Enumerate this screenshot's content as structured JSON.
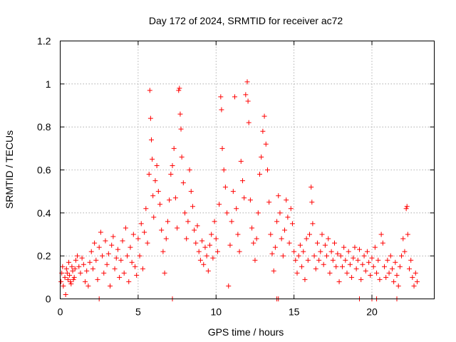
{
  "chart_data": {
    "type": "scatter",
    "title": "Day 172 of 2024, SRMTID for receiver ac72",
    "xlabel": "GPS time / hours",
    "ylabel": "SRMTID / TECUs",
    "xlim": [
      0,
      24
    ],
    "ylim": [
      0,
      1.2
    ],
    "xticks": [
      0,
      5,
      10,
      15,
      20
    ],
    "xtick_labels": [
      "0",
      "5",
      "10",
      "15",
      "20"
    ],
    "yticks": [
      0,
      0.2,
      0.4,
      0.6,
      0.8,
      1.0,
      1.2
    ],
    "ytick_labels": [
      "0",
      "0.2",
      "0.4",
      "0.6",
      "0.8",
      "1",
      "1.2"
    ],
    "grid": true,
    "marker": "plus",
    "color": "#ff0000",
    "series": [
      {
        "name": "SRMTID",
        "points": [
          [
            0.05,
            0.08
          ],
          [
            0.1,
            0.12
          ],
          [
            0.2,
            0.06
          ],
          [
            0.3,
            0.1
          ],
          [
            0.4,
            0.14
          ],
          [
            0.5,
            0.09
          ],
          [
            0.6,
            0.11
          ],
          [
            0.7,
            0.07
          ],
          [
            0.8,
            0.13
          ],
          [
            0.9,
            0.1
          ],
          [
            0.15,
            0.15
          ],
          [
            0.35,
            0.02
          ],
          [
            0.45,
            0.12
          ],
          [
            0.55,
            0.17
          ],
          [
            0.65,
            0.08
          ],
          [
            0.75,
            0.15
          ],
          [
            0.85,
            0.09
          ],
          [
            0.95,
            0.14
          ],
          [
            1.0,
            0.18
          ],
          [
            1.1,
            0.2
          ],
          [
            1.2,
            0.15
          ],
          [
            1.3,
            0.12
          ],
          [
            1.4,
            0.19
          ],
          [
            1.5,
            0.16
          ],
          [
            1.6,
            0.08
          ],
          [
            1.7,
            0.13
          ],
          [
            1.8,
            0.06
          ],
          [
            1.9,
            0.17
          ],
          [
            2.0,
            0.22
          ],
          [
            2.1,
            0.14
          ],
          [
            2.2,
            0.26
          ],
          [
            2.3,
            0.18
          ],
          [
            2.4,
            0.09
          ],
          [
            2.5,
            0.24
          ],
          [
            2.6,
            0.31
          ],
          [
            2.7,
            0.2
          ],
          [
            2.8,
            0.12
          ],
          [
            2.9,
            0.27
          ],
          [
            3.0,
            0.16
          ],
          [
            3.1,
            0.21
          ],
          [
            3.2,
            0.06
          ],
          [
            3.3,
            0.25
          ],
          [
            3.4,
            0.29
          ],
          [
            3.5,
            0.14
          ],
          [
            3.6,
            0.19
          ],
          [
            3.7,
            0.23
          ],
          [
            3.8,
            0.1
          ],
          [
            3.9,
            0.18
          ],
          [
            4.0,
            0.27
          ],
          [
            4.1,
            0.12
          ],
          [
            4.2,
            0.33
          ],
          [
            4.3,
            0.2
          ],
          [
            4.4,
            0.08
          ],
          [
            4.5,
            0.24
          ],
          [
            4.6,
            0.17
          ],
          [
            4.7,
            0.3
          ],
          [
            4.8,
            0.15
          ],
          [
            4.9,
            0.11
          ],
          [
            5.0,
            0.28
          ],
          [
            5.1,
            0.2
          ],
          [
            5.2,
            0.35
          ],
          [
            5.3,
            0.14
          ],
          [
            5.4,
            0.31
          ],
          [
            5.5,
            0.42
          ],
          [
            5.6,
            0.26
          ],
          [
            5.7,
            0.58
          ],
          [
            5.75,
            0.97
          ],
          [
            5.8,
            0.84
          ],
          [
            5.85,
            0.74
          ],
          [
            5.9,
            0.65
          ],
          [
            5.95,
            0.48
          ],
          [
            6.0,
            0.38
          ],
          [
            6.1,
            0.55
          ],
          [
            6.2,
            0.62
          ],
          [
            6.3,
            0.5
          ],
          [
            6.4,
            0.44
          ],
          [
            6.5,
            0.32
          ],
          [
            6.6,
            0.22
          ],
          [
            6.7,
            0.12
          ],
          [
            6.8,
            0.28
          ],
          [
            6.9,
            0.36
          ],
          [
            7.0,
            0.46
          ],
          [
            7.1,
            0.58
          ],
          [
            7.2,
            0.62
          ],
          [
            7.3,
            0.7
          ],
          [
            7.4,
            0.47
          ],
          [
            7.5,
            0.33
          ],
          [
            7.6,
            0.97
          ],
          [
            7.65,
            0.98
          ],
          [
            7.7,
            0.86
          ],
          [
            7.75,
            0.79
          ],
          [
            7.8,
            0.66
          ],
          [
            7.9,
            0.54
          ],
          [
            8.0,
            0.4
          ],
          [
            8.1,
            0.28
          ],
          [
            8.2,
            0.36
          ],
          [
            8.3,
            0.6
          ],
          [
            8.4,
            0.5
          ],
          [
            8.5,
            0.43
          ],
          [
            8.6,
            0.32
          ],
          [
            8.7,
            0.26
          ],
          [
            8.8,
            0.34
          ],
          [
            8.9,
            0.22
          ],
          [
            9.0,
            0.18
          ],
          [
            9.1,
            0.27
          ],
          [
            9.2,
            0.16
          ],
          [
            9.3,
            0.24
          ],
          [
            9.4,
            0.2
          ],
          [
            9.5,
            0.13
          ],
          [
            9.6,
            0.25
          ],
          [
            9.7,
            0.3
          ],
          [
            9.8,
            0.19
          ],
          [
            9.9,
            0.36
          ],
          [
            10.0,
            0.28
          ],
          [
            10.1,
            0.22
          ],
          [
            10.2,
            0.44
          ],
          [
            10.3,
            0.94
          ],
          [
            10.35,
            0.88
          ],
          [
            10.4,
            0.7
          ],
          [
            10.5,
            0.6
          ],
          [
            10.6,
            0.52
          ],
          [
            10.7,
            0.4
          ],
          [
            10.8,
            0.06
          ],
          [
            10.9,
            0.25
          ],
          [
            11.0,
            0.36
          ],
          [
            11.1,
            0.5
          ],
          [
            11.2,
            0.94
          ],
          [
            11.3,
            0.42
          ],
          [
            11.4,
            0.3
          ],
          [
            11.5,
            0.22
          ],
          [
            11.6,
            0.64
          ],
          [
            11.7,
            0.55
          ],
          [
            11.8,
            0.47
          ],
          [
            11.9,
            0.95
          ],
          [
            12.0,
            1.01
          ],
          [
            12.05,
            0.92
          ],
          [
            12.1,
            0.82
          ],
          [
            12.2,
            0.46
          ],
          [
            12.3,
            0.33
          ],
          [
            12.4,
            0.26
          ],
          [
            12.5,
            0.18
          ],
          [
            12.6,
            0.28
          ],
          [
            12.7,
            0.4
          ],
          [
            12.8,
            0.58
          ],
          [
            12.9,
            0.66
          ],
          [
            13.0,
            0.78
          ],
          [
            13.1,
            0.85
          ],
          [
            13.2,
            0.72
          ],
          [
            13.3,
            0.6
          ],
          [
            13.4,
            0.45
          ],
          [
            13.5,
            0.3
          ],
          [
            13.6,
            0.21
          ],
          [
            13.7,
            0.13
          ],
          [
            13.8,
            0.24
          ],
          [
            13.9,
            0.36
          ],
          [
            14.0,
            0.48
          ],
          [
            14.1,
            0.4
          ],
          [
            14.2,
            0.28
          ],
          [
            14.3,
            0.2
          ],
          [
            14.4,
            0.32
          ],
          [
            14.5,
            0.46
          ],
          [
            14.6,
            0.38
          ],
          [
            14.7,
            0.26
          ],
          [
            14.8,
            0.42
          ],
          [
            14.9,
            0.35
          ],
          [
            15.0,
            0.22
          ],
          [
            15.1,
            0.18
          ],
          [
            15.2,
            0.12
          ],
          [
            15.3,
            0.2
          ],
          [
            15.4,
            0.25
          ],
          [
            15.5,
            0.15
          ],
          [
            15.6,
            0.22
          ],
          [
            15.7,
            0.09
          ],
          [
            15.8,
            0.28
          ],
          [
            15.9,
            0.18
          ],
          [
            16.0,
            0.3
          ],
          [
            16.1,
            0.52
          ],
          [
            16.15,
            0.45
          ],
          [
            16.2,
            0.35
          ],
          [
            16.3,
            0.2
          ],
          [
            16.4,
            0.14
          ],
          [
            16.5,
            0.26
          ],
          [
            16.6,
            0.18
          ],
          [
            16.7,
            0.22
          ],
          [
            16.8,
            0.3
          ],
          [
            16.9,
            0.16
          ],
          [
            17.0,
            0.25
          ],
          [
            17.1,
            0.2
          ],
          [
            17.2,
            0.28
          ],
          [
            17.3,
            0.12
          ],
          [
            17.4,
            0.22
          ],
          [
            17.5,
            0.18
          ],
          [
            17.6,
            0.26
          ],
          [
            17.7,
            0.15
          ],
          [
            17.8,
            0.21
          ],
          [
            17.9,
            0.08
          ],
          [
            18.0,
            0.2
          ],
          [
            18.1,
            0.15
          ],
          [
            18.2,
            0.24
          ],
          [
            18.3,
            0.18
          ],
          [
            18.4,
            0.12
          ],
          [
            18.5,
            0.22
          ],
          [
            18.6,
            0.16
          ],
          [
            18.7,
            0.1
          ],
          [
            18.8,
            0.19
          ],
          [
            18.9,
            0.24
          ],
          [
            19.0,
            0.14
          ],
          [
            19.1,
            0.18
          ],
          [
            19.2,
            0.23
          ],
          [
            19.3,
            0.09
          ],
          [
            19.4,
            0.16
          ],
          [
            19.5,
            0.2
          ],
          [
            19.6,
            0.13
          ],
          [
            19.7,
            0.22
          ],
          [
            19.8,
            0.17
          ],
          [
            19.9,
            0.11
          ],
          [
            20.0,
            0.19
          ],
          [
            20.1,
            0.15
          ],
          [
            20.2,
            0.24
          ],
          [
            20.3,
            0.12
          ],
          [
            20.4,
            0.18
          ],
          [
            20.5,
            0.09
          ],
          [
            20.6,
            0.3
          ],
          [
            20.7,
            0.26
          ],
          [
            20.8,
            0.15
          ],
          [
            20.9,
            0.1
          ],
          [
            21.0,
            0.18
          ],
          [
            21.1,
            0.12
          ],
          [
            21.2,
            0.2
          ],
          [
            21.3,
            0.14
          ],
          [
            21.4,
            0.08
          ],
          [
            21.5,
            0.17
          ],
          [
            21.6,
            0.11
          ],
          [
            21.7,
            0.06
          ],
          [
            21.8,
            0.15
          ],
          [
            21.9,
            0.2
          ],
          [
            22.0,
            0.28
          ],
          [
            22.1,
            0.22
          ],
          [
            22.2,
            0.42
          ],
          [
            22.25,
            0.43
          ],
          [
            22.3,
            0.3
          ],
          [
            22.4,
            0.14
          ],
          [
            22.5,
            0.18
          ],
          [
            22.6,
            0.1
          ],
          [
            22.7,
            0.06
          ],
          [
            22.8,
            0.12
          ],
          [
            22.9,
            0.08
          ],
          [
            2.5,
            0.0
          ],
          [
            7.2,
            0.0
          ],
          [
            13.9,
            0.0
          ],
          [
            14.0,
            0.0
          ],
          [
            19.2,
            0.0
          ],
          [
            20.0,
            0.0
          ],
          [
            20.3,
            0.0
          ],
          [
            21.6,
            0.0
          ]
        ]
      }
    ]
  }
}
